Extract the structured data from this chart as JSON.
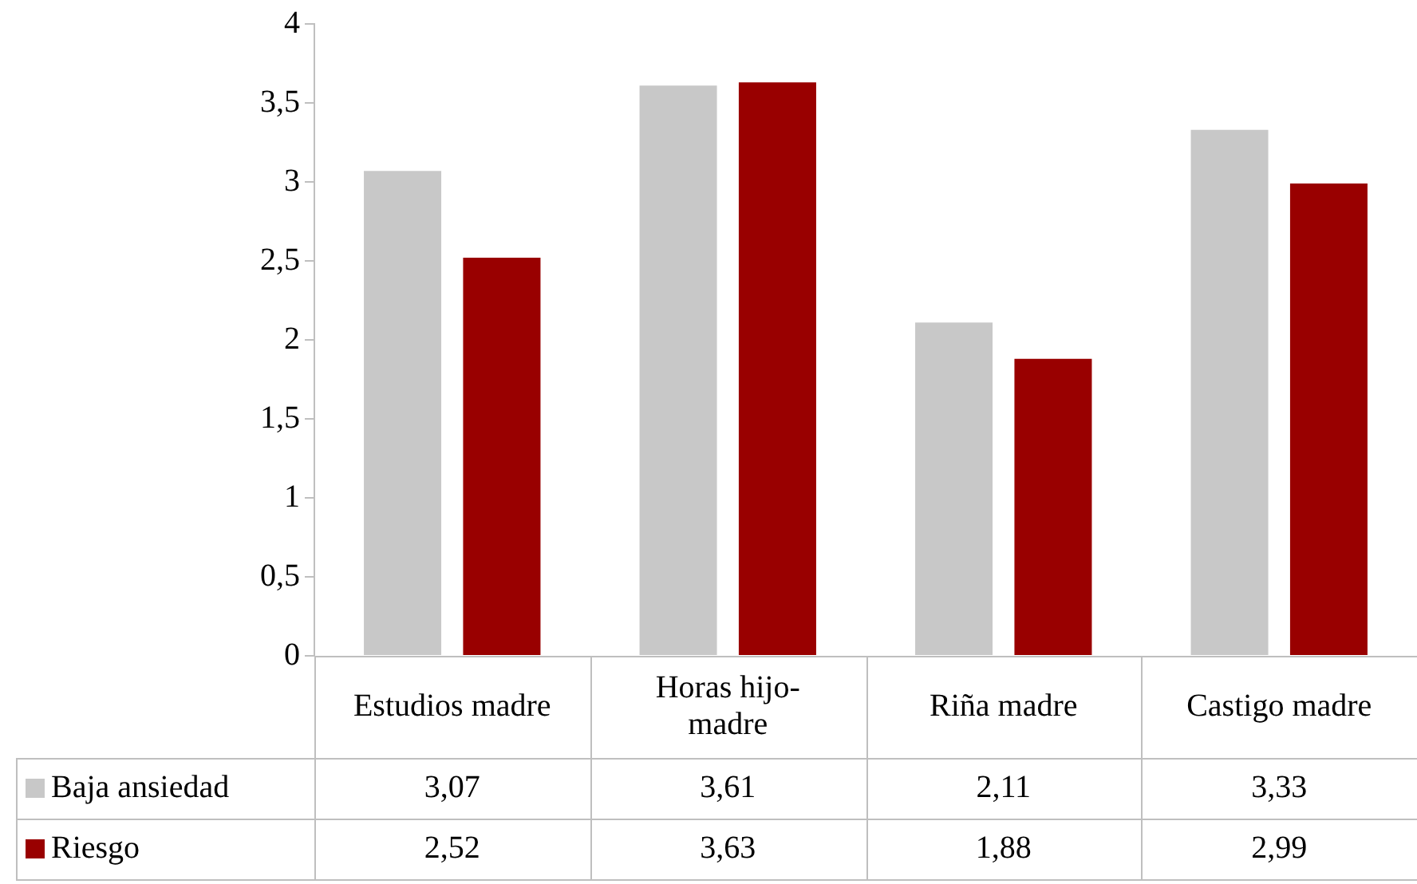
{
  "chart_data": {
    "type": "bar",
    "categories": [
      "Estudios madre",
      "Horas hijo-madre",
      "Riña madre",
      "Castigo madre"
    ],
    "series": [
      {
        "name": "Baja ansiedad",
        "color": "#c8c8c8",
        "values": [
          3.07,
          3.61,
          2.11,
          3.33
        ],
        "value_labels": [
          "3,07",
          "3,61",
          "2,11",
          "3,33"
        ]
      },
      {
        "name": "Riesgo",
        "color": "#990000",
        "values": [
          2.52,
          3.63,
          1.88,
          2.99
        ],
        "value_labels": [
          "2,52",
          "3,63",
          "1,88",
          "2,99"
        ]
      }
    ],
    "ylim": [
      0,
      4
    ],
    "yticks": [
      0,
      {
        "value": 0.5,
        "label": "0,5"
      },
      1,
      {
        "value": 1.5,
        "label": "1,5"
      },
      2,
      {
        "value": 2.5,
        "label": "2,5"
      },
      3,
      {
        "value": 3.5,
        "label": "3,5"
      },
      4
    ],
    "grid": false,
    "legend": "bottom left"
  }
}
